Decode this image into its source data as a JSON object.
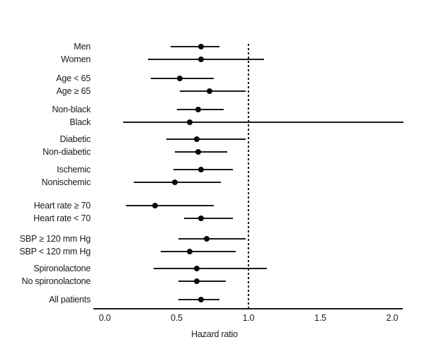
{
  "figure": {
    "background_color": "#ffffff",
    "ink_color": "#1a1a1a"
  },
  "chart_data": {
    "type": "forest",
    "title": "",
    "xlabel": "Hazard ratio",
    "xlim": [
      0.0,
      2.08
    ],
    "x_ticks": [
      0.0,
      0.5,
      1.0,
      1.5,
      2.0
    ],
    "x_tick_labels": [
      "0.0",
      "0.5",
      "1.0",
      "1.5",
      "2.0"
    ],
    "reference_line": 1.0,
    "reference_line_style": "dashed",
    "grid": false,
    "groups": [
      2,
      2,
      2,
      2,
      2,
      2,
      2,
      2,
      1
    ],
    "rows": [
      {
        "label": "Men",
        "hr": 0.67,
        "ci_low": 0.46,
        "ci_high": 0.8
      },
      {
        "label": "Women",
        "hr": 0.67,
        "ci_low": 0.3,
        "ci_high": 1.11
      },
      {
        "label": "Age < 65",
        "hr": 0.52,
        "ci_low": 0.32,
        "ci_high": 0.76
      },
      {
        "label": "Age ≥ 65",
        "hr": 0.73,
        "ci_low": 0.52,
        "ci_high": 0.98
      },
      {
        "label": "Non-black",
        "hr": 0.65,
        "ci_low": 0.5,
        "ci_high": 0.83
      },
      {
        "label": "Black",
        "hr": 0.59,
        "ci_low": 0.13,
        "ci_high": 2.08
      },
      {
        "label": "Diabetic",
        "hr": 0.64,
        "ci_low": 0.43,
        "ci_high": 0.98
      },
      {
        "label": "Non-diabetic",
        "hr": 0.65,
        "ci_low": 0.49,
        "ci_high": 0.85
      },
      {
        "label": "Ischemic",
        "hr": 0.67,
        "ci_low": 0.48,
        "ci_high": 0.89
      },
      {
        "label": "Nonischemic",
        "hr": 0.49,
        "ci_low": 0.2,
        "ci_high": 0.81
      },
      {
        "label": "Heart rate ≥ 70",
        "hr": 0.35,
        "ci_low": 0.15,
        "ci_high": 0.76
      },
      {
        "label": "Heart rate < 70",
        "hr": 0.67,
        "ci_low": 0.55,
        "ci_high": 0.89
      },
      {
        "label": "SBP ≥ 120 mm Hg",
        "hr": 0.71,
        "ci_low": 0.51,
        "ci_high": 0.98
      },
      {
        "label": "SBP < 120 mm Hg",
        "hr": 0.59,
        "ci_low": 0.39,
        "ci_high": 0.91
      },
      {
        "label": "Spironolactone",
        "hr": 0.64,
        "ci_low": 0.34,
        "ci_high": 1.13
      },
      {
        "label": "No spironolactone",
        "hr": 0.64,
        "ci_low": 0.51,
        "ci_high": 0.84
      },
      {
        "label": "All patients",
        "hr": 0.67,
        "ci_low": 0.51,
        "ci_high": 0.8
      }
    ]
  }
}
